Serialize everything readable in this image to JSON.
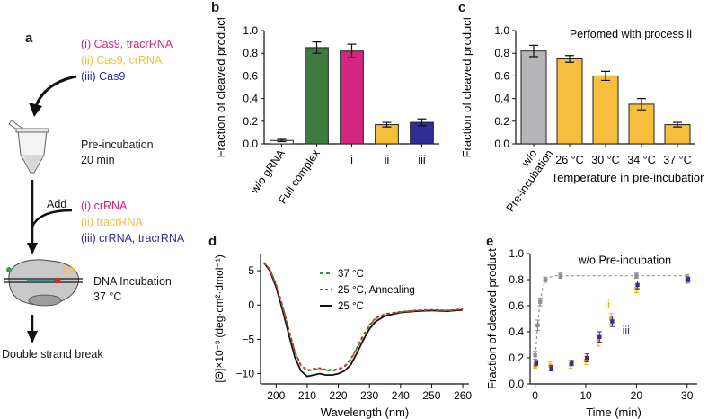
{
  "colors": {
    "magenta": "#d4267f",
    "yellow": "#f5be3c",
    "blue": "#2e2e96",
    "green": "#3f7a3f",
    "gray": "#b5b5b7",
    "black": "#111111",
    "red": "#d32a2a",
    "teal": "#1e8a8a"
  },
  "panel_a": {
    "label": "a",
    "step1_options": [
      {
        "text": "(i)  Cas9, tracrRNA",
        "color": "magenta"
      },
      {
        "text": "(ii)  Cas9, crRNA",
        "color": "yellow"
      },
      {
        "text": "(iii)  Cas9",
        "color": "blue"
      }
    ],
    "preincubation_line1": "Pre-incubation",
    "preincubation_line2": "20 min",
    "add_label": "Add",
    "step2_options": [
      {
        "text": "(i)  crRNA",
        "color": "magenta"
      },
      {
        "text": "(ii)  tracrRNA",
        "color": "yellow"
      },
      {
        "text": "(iii)  crRNA, tracrRNA",
        "color": "blue"
      }
    ],
    "dna_line1": "DNA Incubation",
    "dna_line2": "37 °C",
    "result": "Double strand break"
  },
  "chart_data": [
    {
      "panel": "b",
      "type": "bar",
      "title": "",
      "ylabel": "Fraction of cleaved product",
      "xlabel": "",
      "ylim": [
        0,
        1.0
      ],
      "yticks": [
        "0.0",
        "0.2",
        "0.4",
        "0.6",
        "0.8",
        "1.0"
      ],
      "categories": [
        "w/o gRNA",
        "Full complex",
        "i",
        "ii",
        "iii"
      ],
      "values": [
        0.03,
        0.85,
        0.82,
        0.17,
        0.19
      ],
      "errors": [
        0.01,
        0.05,
        0.06,
        0.02,
        0.03
      ],
      "bar_colors": [
        "#ffffff",
        "#3f7a3f",
        "#d4267f",
        "#f5be3c",
        "#2e2e96"
      ]
    },
    {
      "panel": "c",
      "type": "bar",
      "title": "",
      "annotation": "Perfomed with process ii",
      "ylabel": "Fraction of cleaved product",
      "xlabel": "Temperature in pre-incubation",
      "ylim": [
        0,
        1.0
      ],
      "yticks": [
        "0.0",
        "0.2",
        "0.4",
        "0.6",
        "0.8",
        "1.0"
      ],
      "categories": [
        "w/o Pre-incubation",
        "26 °C",
        "30 °C",
        "34 °C",
        "37 °C"
      ],
      "values": [
        0.82,
        0.75,
        0.6,
        0.35,
        0.17
      ],
      "errors": [
        0.05,
        0.03,
        0.04,
        0.05,
        0.02
      ],
      "bar_colors": [
        "#b5b5b7",
        "#f5be3c",
        "#f5be3c",
        "#f5be3c",
        "#f5be3c"
      ]
    },
    {
      "panel": "d",
      "type": "line",
      "title": "",
      "ylabel": "[Θ]×10⁻³ (deg·cm²·dmol⁻¹)",
      "xlabel": "Wavelength (nm)",
      "xlim": [
        195,
        262
      ],
      "ylim": [
        -11.5,
        7.5
      ],
      "xticks": [
        200,
        210,
        220,
        230,
        240,
        250,
        260
      ],
      "yticks": [
        -10,
        -5,
        0,
        5
      ],
      "legend": [
        "37 °C",
        "25 °C, Annealing",
        "25 °C"
      ],
      "series": [
        {
          "name": "37 °C",
          "color": "#2a9b3c",
          "dash": "4,3",
          "x": [
            196,
            198,
            200,
            202,
            204,
            206,
            208,
            210,
            212,
            214,
            216,
            218,
            220,
            222,
            224,
            226,
            228,
            230,
            232,
            235,
            240,
            245,
            250,
            255,
            260
          ],
          "y": [
            6.2,
            5.2,
            3.0,
            0.0,
            -3.5,
            -6.8,
            -8.8,
            -9.6,
            -9.4,
            -9.3,
            -9.5,
            -9.6,
            -9.4,
            -9.0,
            -8.0,
            -6.3,
            -4.5,
            -3.0,
            -2.0,
            -1.3,
            -1.0,
            -0.8,
            -0.7,
            -0.8,
            -0.6
          ]
        },
        {
          "name": "25 °C, Annealing",
          "color": "#d32a2a",
          "dash": "3,3",
          "x": [
            196,
            198,
            200,
            202,
            204,
            206,
            208,
            210,
            212,
            214,
            216,
            218,
            220,
            222,
            224,
            226,
            228,
            230,
            232,
            235,
            240,
            245,
            250,
            255,
            260
          ],
          "y": [
            6.2,
            5.2,
            3.0,
            0.0,
            -3.5,
            -6.8,
            -8.8,
            -9.5,
            -9.3,
            -9.2,
            -9.4,
            -9.5,
            -9.3,
            -8.9,
            -7.9,
            -6.2,
            -4.4,
            -2.9,
            -1.9,
            -1.3,
            -1.0,
            -0.8,
            -0.7,
            -0.8,
            -0.6
          ]
        },
        {
          "name": "25 °C",
          "color": "#111111",
          "dash": "",
          "x": [
            196,
            198,
            200,
            202,
            204,
            206,
            208,
            210,
            212,
            214,
            216,
            218,
            220,
            222,
            224,
            226,
            228,
            230,
            232,
            235,
            240,
            245,
            250,
            255,
            260
          ],
          "y": [
            6.2,
            5.0,
            2.6,
            -0.6,
            -4.2,
            -7.6,
            -9.6,
            -10.4,
            -10.2,
            -10.0,
            -10.2,
            -10.2,
            -10.0,
            -9.6,
            -8.7,
            -7.0,
            -5.1,
            -3.5,
            -2.4,
            -1.6,
            -1.1,
            -0.9,
            -0.8,
            -0.9,
            -0.7
          ]
        }
      ]
    },
    {
      "panel": "e",
      "type": "scatter",
      "title": "",
      "annotation": "w/o Pre-incubation",
      "ylabel": "Fraction of cleaved product",
      "xlabel": "Time (min)",
      "xlim": [
        -1,
        32
      ],
      "ylim": [
        0,
        1.0
      ],
      "xticks": [
        0,
        10,
        20,
        30
      ],
      "yticks": [
        "0.0",
        "0.2",
        "0.4",
        "0.6",
        "0.8",
        "1.0"
      ],
      "series": [
        {
          "name": "w/o Pre-incubation",
          "label": "",
          "color": "#8e8e90",
          "x": [
            0,
            0.5,
            1,
            2,
            5,
            20,
            30
          ],
          "y": [
            0.22,
            0.45,
            0.63,
            0.8,
            0.83,
            0.83,
            0.82
          ],
          "err": [
            0.03,
            0.04,
            0.03,
            0.02,
            0.02,
            0.02,
            0.02
          ]
        },
        {
          "name": "ii",
          "label": "ii",
          "color": "#f0a818",
          "x": [
            0,
            3,
            7,
            10,
            12.5,
            15,
            20,
            30
          ],
          "y": [
            0.14,
            0.14,
            0.15,
            0.18,
            0.33,
            0.5,
            0.73,
            0.8
          ],
          "err": [
            0.02,
            0.03,
            0.03,
            0.03,
            0.04,
            0.04,
            0.03,
            0.03
          ]
        },
        {
          "name": "iii",
          "label": "iii",
          "color": "#2e2e96",
          "x": [
            0,
            3,
            7,
            10,
            12.5,
            15,
            20,
            30
          ],
          "y": [
            0.16,
            0.12,
            0.16,
            0.2,
            0.36,
            0.48,
            0.76,
            0.8
          ],
          "err": [
            0.02,
            0.02,
            0.02,
            0.03,
            0.04,
            0.04,
            0.03,
            0.02
          ]
        }
      ],
      "fit": {
        "name": "fit",
        "x": [
          0,
          0.5,
          1,
          1.5,
          2,
          3,
          4,
          6,
          10,
          20,
          30
        ],
        "y": [
          0.18,
          0.46,
          0.64,
          0.74,
          0.79,
          0.82,
          0.83,
          0.83,
          0.83,
          0.83,
          0.83
        ]
      }
    }
  ]
}
